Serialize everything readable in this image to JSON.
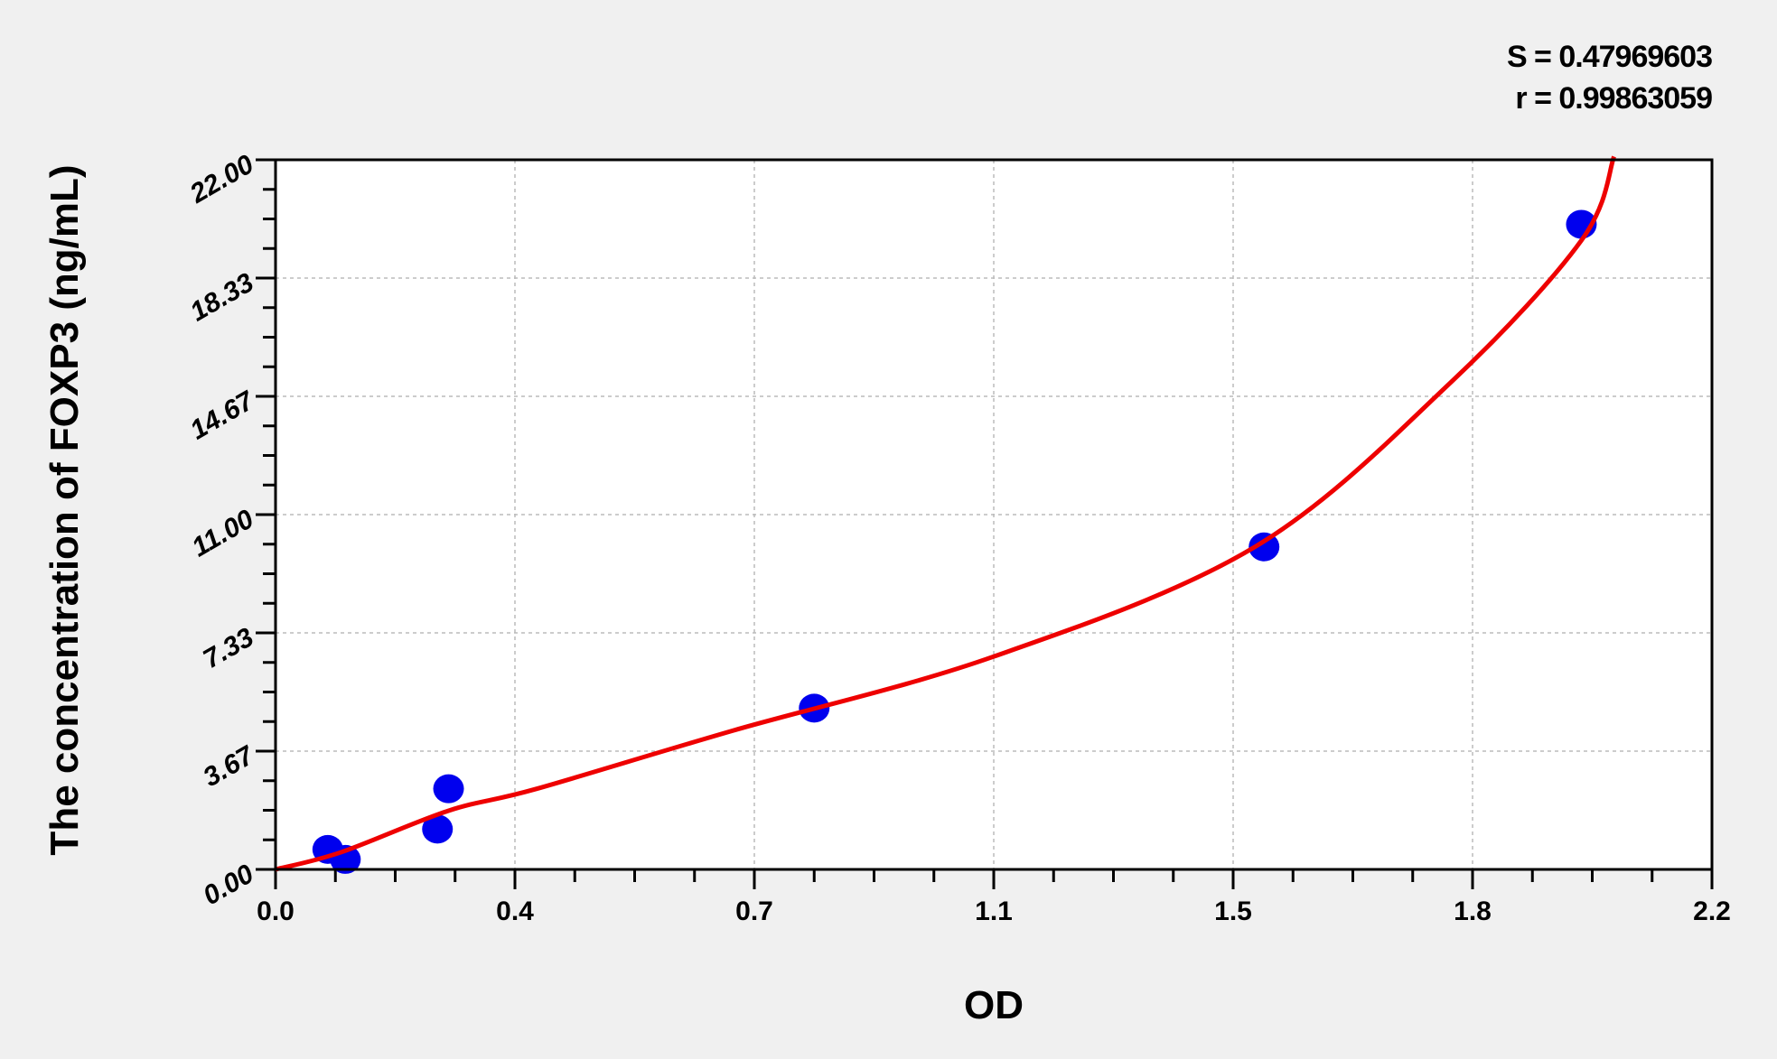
{
  "chart_data": {
    "type": "scatter",
    "title": "",
    "xlabel": "OD",
    "ylabel": "The concentration of FOXP3 (ng/mL)",
    "xlim": [
      0,
      2.2
    ],
    "ylim": [
      0,
      22
    ],
    "x_tick_labels": [
      "0.0",
      "0.4",
      "0.7",
      "1.1",
      "1.5",
      "1.8",
      "2.2"
    ],
    "y_tick_labels": [
      "0.00",
      "3.67",
      "7.33",
      "11.00",
      "14.67",
      "18.33",
      "22.00"
    ],
    "grid": true,
    "annotations": {
      "S": "S = 0.47969603",
      "r": "r = 0.99863059"
    },
    "colors": {
      "points": "#0000ee",
      "curve": "#ee0000",
      "background": "#f0f0f0",
      "plot_area": "#ffffff"
    },
    "points": {
      "x": [
        0.08,
        0.107,
        0.248,
        0.265,
        0.825,
        1.514,
        2.0
      ],
      "y": [
        0.62,
        0.31,
        1.25,
        2.5,
        5.0,
        10.0,
        20.0
      ]
    },
    "fit_curve": {
      "x": [
        0.0,
        0.1,
        0.265,
        0.4,
        0.7,
        1.1,
        1.5,
        1.8,
        2.0,
        2.05
      ],
      "y": [
        0.0,
        0.53,
        1.82,
        2.5,
        4.3,
        6.6,
        10.0,
        15.1,
        19.5,
        22.1
      ]
    }
  }
}
